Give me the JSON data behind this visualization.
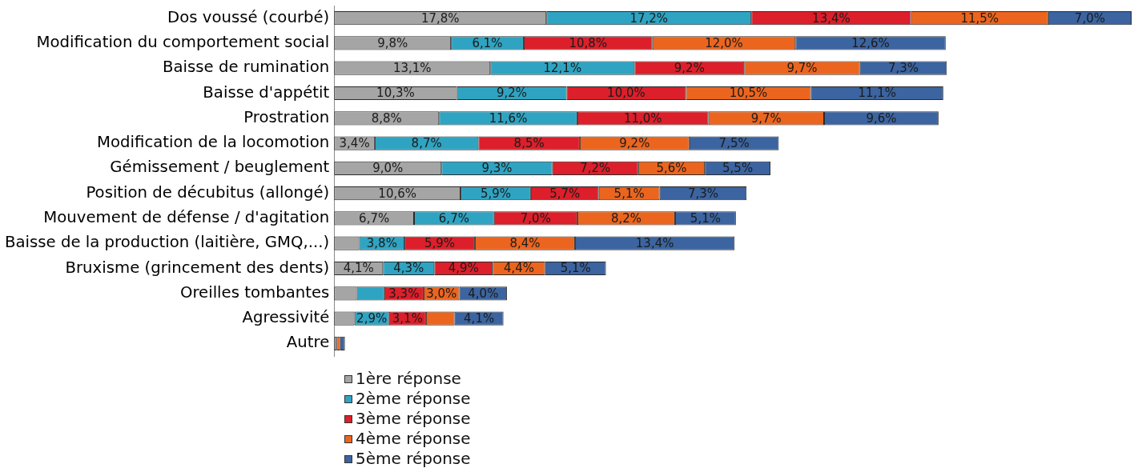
{
  "chart_data": {
    "type": "bar",
    "orientation": "horizontal",
    "stacked": true,
    "legend": "bottom",
    "tick_labels": "y",
    "categories": [
      "Dos voussé (courbé)",
      "Modification du comportement social",
      "Baisse de rumination",
      "Baisse d'appétit",
      "Prostration",
      "Modification de la locomotion",
      "Gémissement / beuglement",
      "Position de décubitus (allongé)",
      "Mouvement de défense / d'agitation",
      "Baisse de la production (laitière, GMQ,...)",
      "Bruxisme (grincement des dents)",
      "Oreilles tombantes",
      "Agressivité",
      "Autre"
    ],
    "series": [
      {
        "name": "1ère réponse",
        "color": "#a5a5a5",
        "values": [
          17.8,
          9.8,
          13.1,
          10.3,
          8.8,
          3.4,
          9.0,
          10.6,
          6.7,
          2.1,
          4.1,
          1.9,
          1.7,
          0.2
        ],
        "value_labels": [
          "17,8%",
          "9,8%",
          "13,1%",
          "10,3%",
          "8,8%",
          "3,4%",
          "9,0%",
          "10,6%",
          "6,7%",
          null,
          "4,1%",
          null,
          null,
          null
        ]
      },
      {
        "name": "2ème réponse",
        "color": "#2fa4c2",
        "values": [
          17.2,
          6.1,
          12.1,
          9.2,
          11.6,
          8.7,
          9.3,
          5.9,
          6.7,
          3.8,
          4.3,
          2.3,
          2.9,
          0
        ],
        "value_labels": [
          "17,2%",
          "6,1%",
          "12,1%",
          "9,2%",
          "11,6%",
          "8,7%",
          "9,3%",
          "5,9%",
          "6,7%",
          "3,8%",
          "4,3%",
          null,
          "2,9%",
          null
        ]
      },
      {
        "name": "3ème réponse",
        "color": "#dc1f2a",
        "values": [
          13.4,
          10.8,
          9.2,
          10.0,
          11.0,
          8.5,
          7.2,
          5.7,
          7.0,
          5.9,
          4.9,
          3.3,
          3.1,
          0
        ],
        "value_labels": [
          "13,4%",
          "10,8%",
          "9,2%",
          "10,0%",
          "11,0%",
          "8,5%",
          "7,2%",
          "5,7%",
          "7,0%",
          "5,9%",
          "4,9%",
          "3,3%",
          "3,1%",
          null
        ]
      },
      {
        "name": "4ème réponse",
        "color": "#eb651f",
        "values": [
          11.5,
          12.0,
          9.7,
          10.5,
          9.7,
          9.2,
          5.6,
          5.1,
          8.2,
          8.4,
          4.4,
          3.0,
          2.4,
          0.3
        ],
        "value_labels": [
          "11,5%",
          "12,0%",
          "9,7%",
          "10,5%",
          "9,7%",
          "9,2%",
          "5,6%",
          "5,1%",
          "8,2%",
          "8,4%",
          "4,4%",
          "3,0%",
          null,
          null
        ]
      },
      {
        "name": "5ème réponse",
        "color": "#3b64a0",
        "values": [
          7.0,
          12.6,
          7.3,
          11.1,
          9.6,
          7.5,
          5.5,
          7.3,
          5.1,
          13.4,
          5.1,
          4.0,
          4.1,
          0.4
        ],
        "value_labels": [
          "7,0%",
          "12,6%",
          "7,3%",
          "11,1%",
          "9,6%",
          "7,5%",
          "5,5%",
          "7,3%",
          "5,1%",
          "13,4%",
          "5,1%",
          "4,0%",
          "4,1%",
          null
        ]
      }
    ]
  }
}
